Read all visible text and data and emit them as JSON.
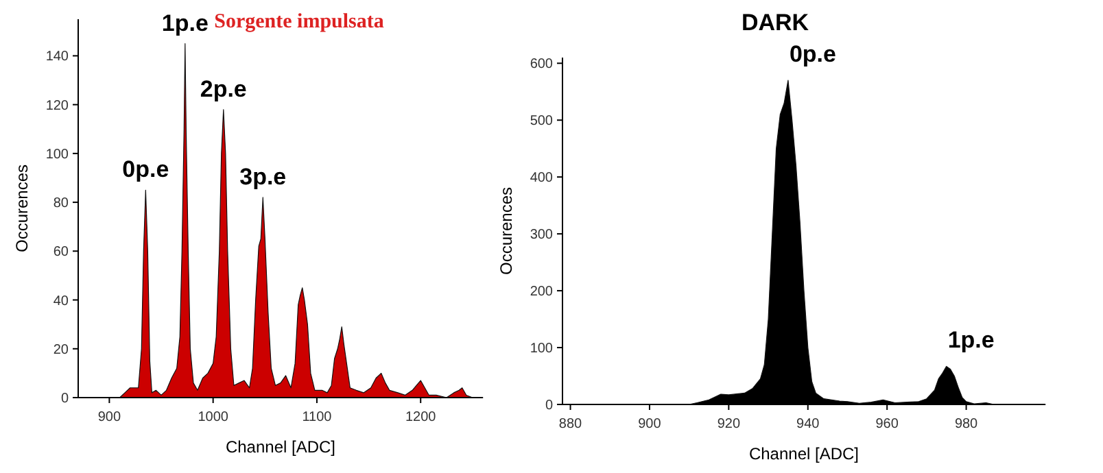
{
  "chart_data": [
    {
      "type": "area",
      "title": "Sorgente impulsata",
      "xlabel": "Channel [ADC]",
      "ylabel": "Occurences",
      "xlim": [
        870,
        1260
      ],
      "ylim": [
        0,
        155
      ],
      "xticks": [
        900,
        1000,
        1100,
        1200
      ],
      "yticks": [
        0,
        20,
        40,
        60,
        80,
        100,
        120,
        140
      ],
      "series": [
        {
          "color": "#cc0000",
          "x": [
            870,
            910,
            915,
            920,
            928,
            931,
            933,
            935,
            937,
            939,
            941,
            945,
            950,
            955,
            960,
            965,
            968,
            970,
            972,
            973,
            974,
            976,
            978,
            981,
            985,
            990,
            995,
            1000,
            1003,
            1006,
            1008,
            1010,
            1012,
            1014,
            1017,
            1020,
            1025,
            1030,
            1035,
            1038,
            1041,
            1044,
            1046,
            1048,
            1050,
            1053,
            1056,
            1060,
            1065,
            1070,
            1075,
            1079,
            1082,
            1084,
            1086,
            1088,
            1091,
            1094,
            1098,
            1105,
            1110,
            1114,
            1117,
            1120,
            1122,
            1124,
            1126,
            1129,
            1132,
            1138,
            1145,
            1152,
            1157,
            1162,
            1166,
            1170,
            1178,
            1185,
            1192,
            1196,
            1200,
            1204,
            1208,
            1215,
            1225,
            1232,
            1237,
            1240,
            1244,
            1250,
            1260
          ],
          "values": [
            0,
            0,
            2,
            4,
            4,
            20,
            60,
            85,
            60,
            15,
            2,
            3,
            1,
            3,
            8,
            12,
            25,
            60,
            110,
            145,
            110,
            60,
            20,
            6,
            3,
            8,
            10,
            14,
            25,
            60,
            100,
            118,
            100,
            60,
            20,
            5,
            6,
            7,
            4,
            12,
            40,
            62,
            65,
            82,
            65,
            35,
            12,
            5,
            6,
            9,
            4,
            14,
            38,
            42,
            45,
            40,
            30,
            10,
            3,
            3,
            2,
            5,
            16,
            20,
            24,
            29,
            22,
            13,
            4,
            3,
            2,
            4,
            8,
            10,
            6,
            3,
            2,
            1,
            3,
            5,
            7,
            4,
            1,
            1,
            0,
            2,
            3,
            4,
            1,
            0,
            0
          ]
        }
      ],
      "annotations": [
        {
          "text": "0p.e",
          "x": 935,
          "y": 85
        },
        {
          "text": "1p.e",
          "x": 973,
          "y": 145
        },
        {
          "text": "2p.e",
          "x": 1010,
          "y": 118
        },
        {
          "text": "3p.e",
          "x": 1048,
          "y": 82
        }
      ]
    },
    {
      "type": "area",
      "title": "DARK",
      "xlabel": "Channel [ADC]",
      "ylabel": "Occurences",
      "xlim": [
        878,
        1000
      ],
      "ylim": [
        0,
        610
      ],
      "xticks": [
        880,
        900,
        920,
        940,
        960,
        980
      ],
      "yticks": [
        0,
        100,
        200,
        300,
        400,
        500,
        600
      ],
      "series": [
        {
          "color": "#000000",
          "x": [
            878,
            910,
            912,
            915,
            918,
            920,
            924,
            926,
            928,
            929,
            930,
            931,
            932,
            933,
            934,
            935,
            936,
            937,
            938,
            939,
            940,
            941,
            942,
            944,
            948,
            950,
            953,
            956,
            959,
            962,
            965,
            968,
            970,
            972,
            973,
            974,
            975,
            976,
            977,
            978,
            979,
            980,
            982,
            985,
            987,
            1000
          ],
          "values": [
            0,
            0,
            3,
            8,
            18,
            17,
            20,
            28,
            45,
            70,
            150,
            300,
            450,
            510,
            530,
            570,
            500,
            420,
            320,
            200,
            100,
            40,
            20,
            10,
            6,
            5,
            2,
            4,
            8,
            3,
            4,
            5,
            10,
            25,
            45,
            55,
            67,
            62,
            50,
            30,
            12,
            5,
            1,
            3,
            0,
            0
          ]
        }
      ],
      "annotations": [
        {
          "text": "0p.e",
          "x": 935,
          "y": 570
        },
        {
          "text": "1p.e",
          "x": 975,
          "y": 67
        }
      ]
    }
  ]
}
